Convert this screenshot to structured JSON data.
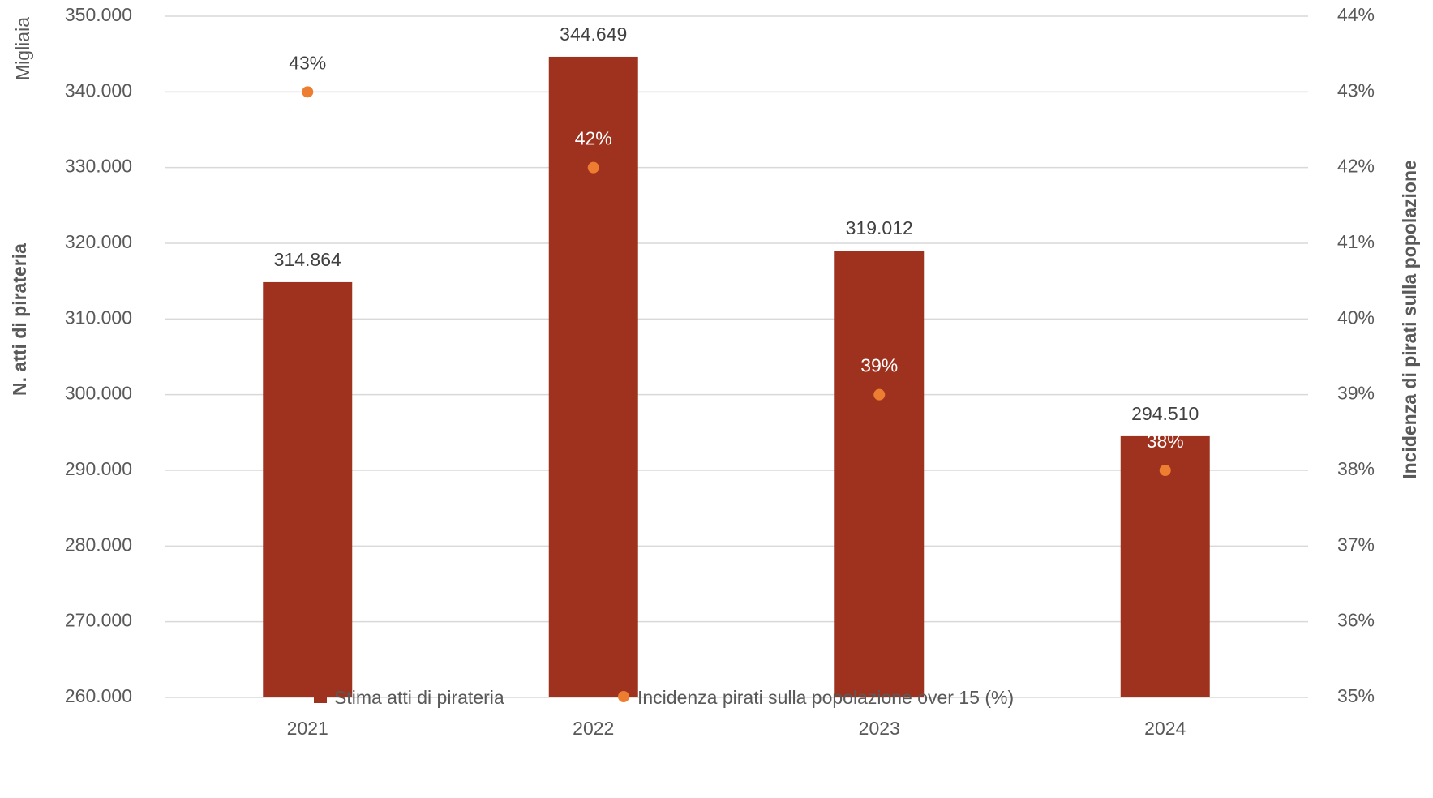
{
  "chart_data": {
    "type": "bar",
    "categories": [
      "2021",
      "2022",
      "2023",
      "2024"
    ],
    "series": [
      {
        "name": "Stima atti di pirateria",
        "kind": "bar",
        "axis": "left",
        "color": "#9E321E",
        "values": [
          314864,
          344649,
          319012,
          294510
        ],
        "labels": [
          "314.864",
          "344.649",
          "319.012",
          "294.510"
        ]
      },
      {
        "name": "Incidenza pirati sulla popolazione over 15 (%)",
        "kind": "scatter",
        "axis": "right",
        "color": "#ED7D31",
        "values": [
          43,
          42,
          39,
          38
        ],
        "labels": [
          "43%",
          "42%",
          "39%",
          "38%"
        ]
      }
    ],
    "y_left": {
      "label": "N. atti di pirateria",
      "unit": "Migliaia",
      "range": [
        260000,
        350000
      ],
      "ticks": [
        260000,
        270000,
        280000,
        290000,
        300000,
        310000,
        320000,
        330000,
        340000,
        350000
      ],
      "tick_labels": [
        "260.000",
        "270.000",
        "280.000",
        "290.000",
        "300.000",
        "310.000",
        "320.000",
        "330.000",
        "340.000",
        "350.000"
      ]
    },
    "y_right": {
      "label": "Incidenza di pirati sulla popolazione",
      "range": [
        35,
        44
      ],
      "ticks": [
        35,
        36,
        37,
        38,
        39,
        40,
        41,
        42,
        43,
        44
      ],
      "tick_labels": [
        "35%",
        "36%",
        "37%",
        "38%",
        "39%",
        "40%",
        "41%",
        "42%",
        "43%",
        "44%"
      ]
    },
    "grid": true,
    "legend": "bottom"
  }
}
